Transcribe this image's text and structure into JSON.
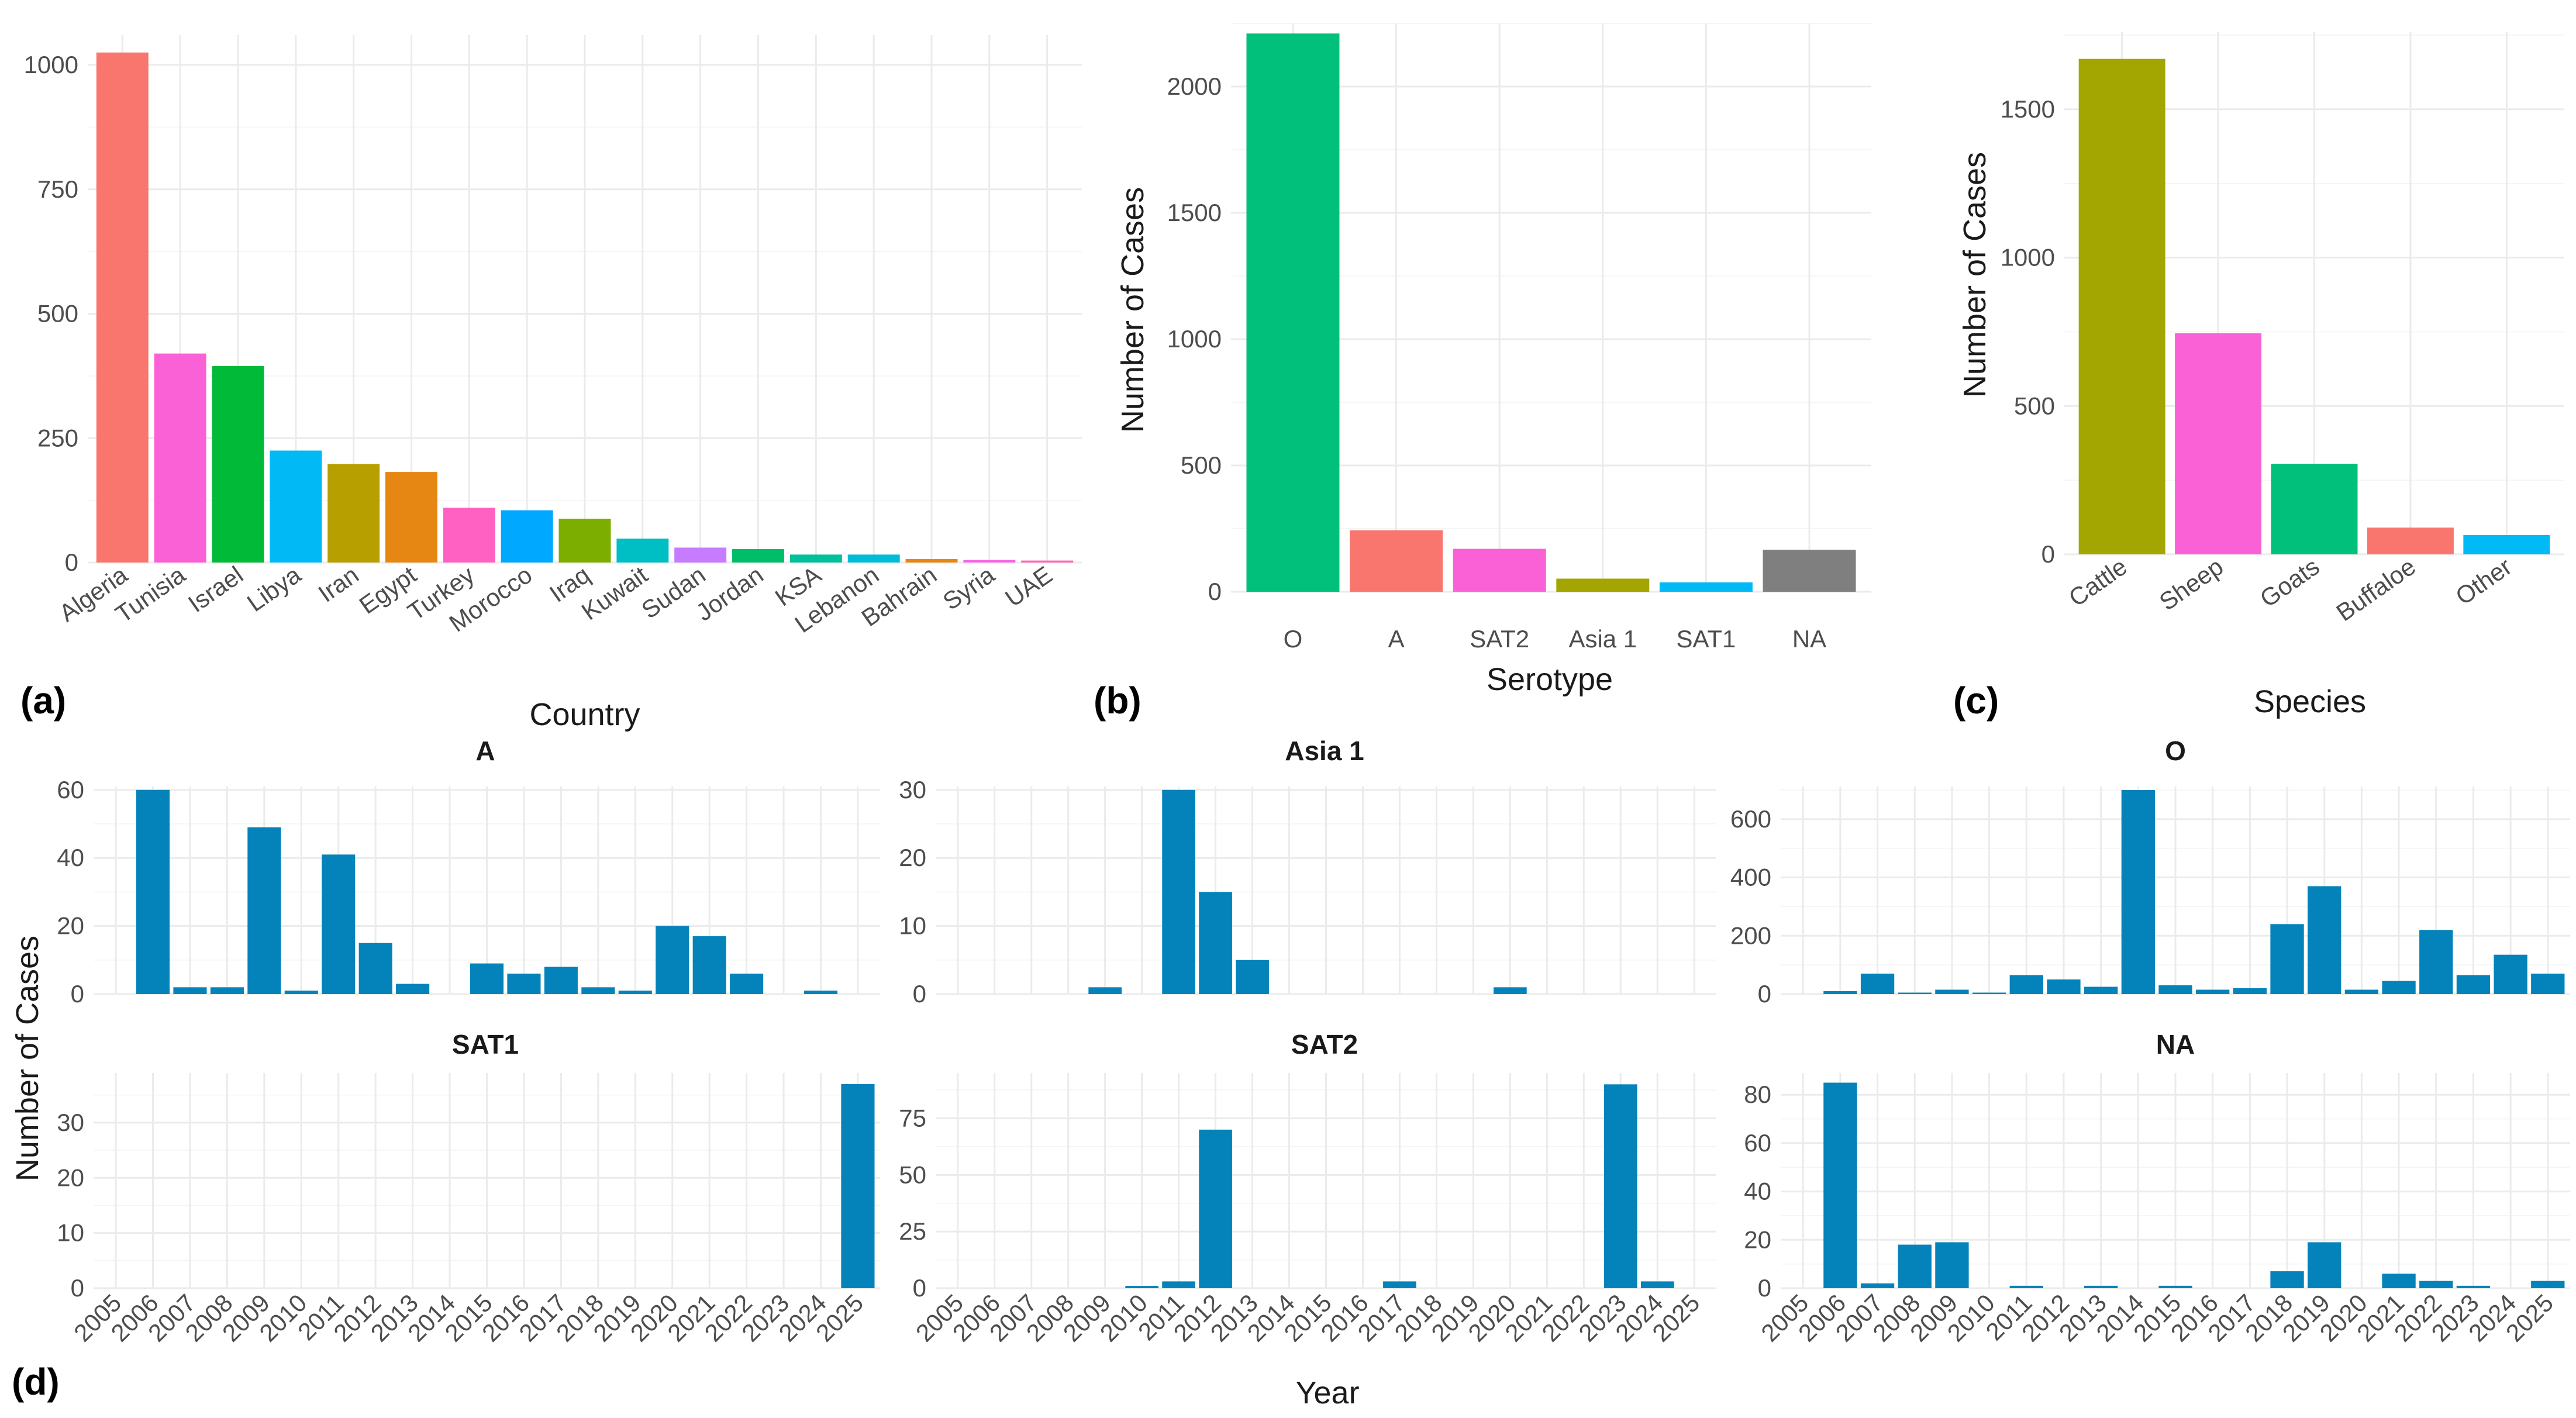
{
  "colors": {
    "facet_bar": "#0383BA",
    "grid_major": "#EBEBEB",
    "grid_minor": "#F4F4F4",
    "tick_text": "#4D4D4D"
  },
  "chart_data": [
    {
      "id": "a",
      "panel_label": "(a)",
      "type": "bar",
      "title": "",
      "xlabel": "Country",
      "ylabel": "",
      "categories": [
        "Algeria",
        "Tunisia",
        "Israel",
        "Libya",
        "Iran",
        "Egypt",
        "Turkey",
        "Morocco",
        "Iraq",
        "Kuwait",
        "Sudan",
        "Jordan",
        "KSA",
        "Lebanon",
        "Bahrain",
        "Syria",
        "UAE"
      ],
      "values": [
        1025,
        420,
        395,
        225,
        198,
        182,
        110,
        105,
        88,
        48,
        30,
        27,
        16,
        16,
        7,
        5,
        4
      ],
      "colors": [
        "#F8766D",
        "#FB61D7",
        "#00BA38",
        "#00B9F5",
        "#B79F00",
        "#E68613",
        "#FF61C3",
        "#00A9FF",
        "#7CAE00",
        "#00BFC4",
        "#C77CFF",
        "#00BE67",
        "#00C19A",
        "#00BCD8",
        "#E68613",
        "#F564E3",
        "#FF64B0"
      ],
      "ylim": [
        0,
        1060
      ],
      "yticks": [
        0,
        250,
        500,
        750,
        1000
      ]
    },
    {
      "id": "b",
      "panel_label": "(b)",
      "type": "bar",
      "title": "",
      "xlabel": "Serotype",
      "ylabel": "Number of Cases",
      "categories": [
        "O",
        "A",
        "SAT2",
        "Asia 1",
        "SAT1",
        "NA"
      ],
      "values": [
        2210,
        243,
        170,
        52,
        37,
        166
      ],
      "colors": [
        "#00C07B",
        "#F8766D",
        "#FB61D7",
        "#A3A500",
        "#00B9F5",
        "#7F7F7F"
      ],
      "ylim": [
        0,
        2250
      ],
      "yticks": [
        0,
        500,
        1000,
        1500,
        2000
      ]
    },
    {
      "id": "c",
      "panel_label": "(c)",
      "type": "bar",
      "title": "",
      "xlabel": "Species",
      "ylabel": "Number of Cases",
      "categories": [
        "Cattle",
        "Sheep",
        "Goats",
        "Buffaloe",
        "Other"
      ],
      "values": [
        1670,
        745,
        305,
        90,
        65
      ],
      "colors": [
        "#A3A500",
        "#FB61D7",
        "#00C07B",
        "#F8766D",
        "#00B9F5"
      ],
      "ylim": [
        0,
        1760
      ],
      "yticks": [
        0,
        500,
        1000,
        1500
      ]
    },
    {
      "id": "d",
      "panel_label": "(d)",
      "type": "bar",
      "title": "",
      "xlabel": "Year",
      "ylabel": "Number of Cases",
      "x": [
        "2005",
        "2006",
        "2007",
        "2008",
        "2009",
        "2010",
        "2011",
        "2012",
        "2013",
        "2014",
        "2015",
        "2016",
        "2017",
        "2018",
        "2019",
        "2020",
        "2021",
        "2022",
        "2023",
        "2024",
        "2025"
      ],
      "facets": [
        {
          "name": "A",
          "values": [
            0,
            60,
            2,
            2,
            49,
            1,
            41,
            15,
            3,
            0,
            9,
            6,
            8,
            2,
            1,
            20,
            17,
            6,
            0,
            1,
            0
          ],
          "ylim": [
            0,
            61
          ],
          "yticks": [
            0,
            20,
            40,
            60
          ]
        },
        {
          "name": "Asia 1",
          "values": [
            0,
            0,
            0,
            0,
            1,
            0,
            30,
            15,
            5,
            0,
            0,
            0,
            0,
            0,
            0,
            1,
            0,
            0,
            0,
            0,
            0
          ],
          "ylim": [
            0,
            30.5
          ],
          "yticks": [
            0,
            10,
            20,
            30
          ]
        },
        {
          "name": "O",
          "values": [
            0,
            10,
            70,
            5,
            15,
            5,
            65,
            50,
            25,
            700,
            30,
            15,
            20,
            240,
            370,
            15,
            45,
            220,
            65,
            135,
            70
          ],
          "ylim": [
            0,
            712
          ],
          "yticks": [
            0,
            200,
            400,
            600
          ]
        },
        {
          "name": "SAT1",
          "values": [
            0,
            0,
            0,
            0,
            0,
            0,
            0,
            0,
            0,
            0,
            0,
            0,
            0,
            0,
            0,
            0,
            0,
            0,
            0,
            0,
            37
          ],
          "ylim": [
            0,
            39
          ],
          "yticks": [
            0,
            10,
            20,
            30
          ]
        },
        {
          "name": "SAT2",
          "values": [
            0,
            0,
            0,
            0,
            0,
            1,
            3,
            70,
            0,
            0,
            0,
            0,
            3,
            0,
            0,
            0,
            0,
            0,
            90,
            3,
            0
          ],
          "ylim": [
            0,
            95
          ],
          "yticks": [
            0,
            25,
            50,
            75
          ]
        },
        {
          "name": "NA",
          "values": [
            0,
            85,
            2,
            18,
            19,
            0,
            1,
            0,
            1,
            0,
            1,
            0,
            0,
            7,
            19,
            0,
            6,
            3,
            1,
            0,
            3
          ],
          "ylim": [
            0,
            89
          ],
          "yticks": [
            0,
            20,
            40,
            60,
            80
          ]
        }
      ]
    }
  ]
}
